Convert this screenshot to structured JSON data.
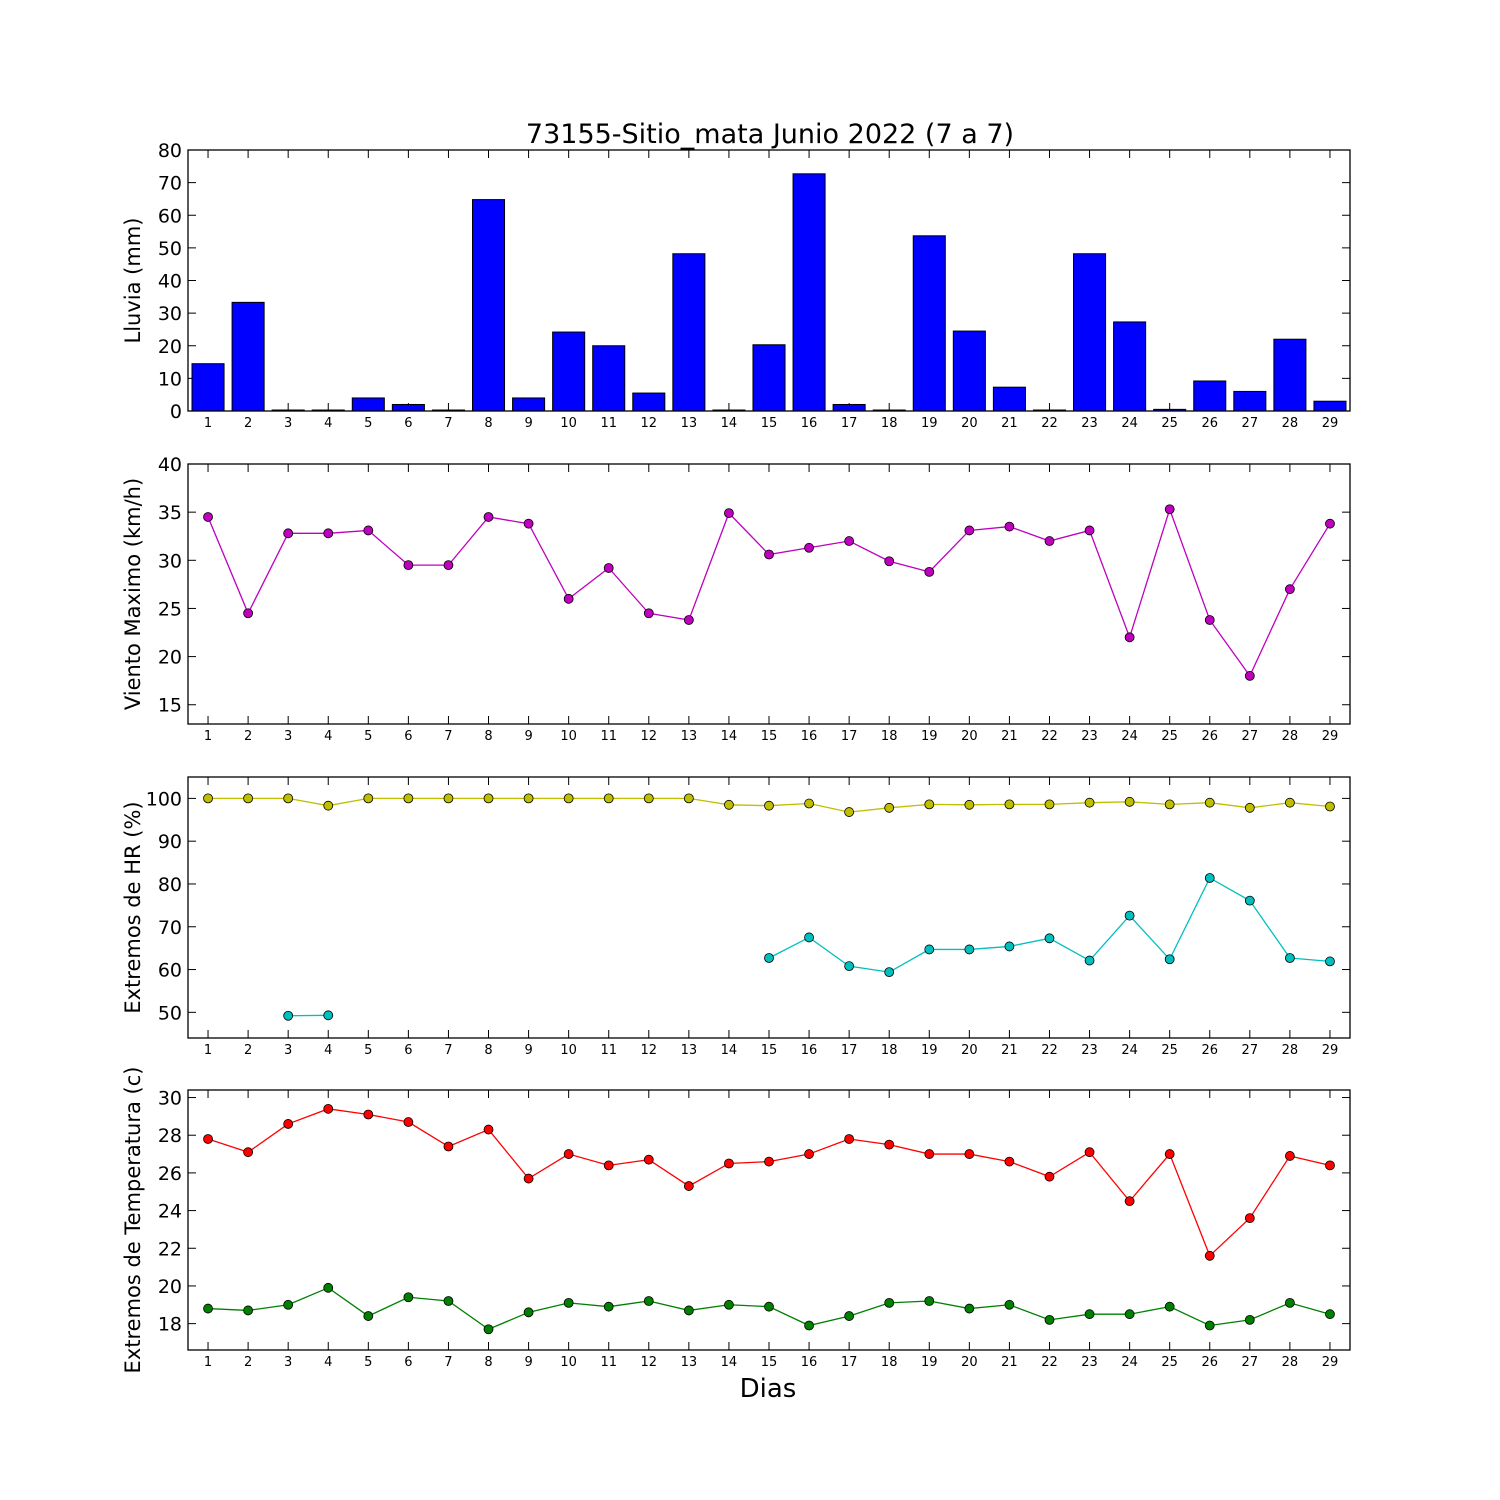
{
  "title": "73155-Sitio_mata Junio 2022  (7 a 7)",
  "xlabel": "Dias",
  "chart_data": [
    {
      "type": "bar",
      "ylabel": "Lluvia (mm)",
      "ylim": [
        0,
        80
      ],
      "yticks": [
        0,
        10,
        20,
        30,
        40,
        50,
        60,
        70,
        80
      ],
      "x": [
        1,
        2,
        3,
        4,
        5,
        6,
        7,
        8,
        9,
        10,
        11,
        12,
        13,
        14,
        15,
        16,
        17,
        18,
        19,
        20,
        21,
        22,
        23,
        24,
        25,
        26,
        27,
        28,
        29
      ],
      "series": [
        {
          "color": "#0000ff",
          "values": [
            14.5,
            33.3,
            0.3,
            0.3,
            4.0,
            2.0,
            0.3,
            64.8,
            4.0,
            24.2,
            20.0,
            5.5,
            48.2,
            0.3,
            20.3,
            72.7,
            2.0,
            0.3,
            53.7,
            24.5,
            7.3,
            0.3,
            48.2,
            27.3,
            0.5,
            9.2,
            6.0,
            22.0,
            3.0
          ]
        }
      ]
    },
    {
      "type": "line",
      "ylabel": "Viento Maximo (km/h)",
      "ylim": [
        13,
        40
      ],
      "yticks": [
        15,
        20,
        25,
        30,
        35,
        40
      ],
      "x": [
        1,
        2,
        3,
        4,
        5,
        6,
        7,
        8,
        9,
        10,
        11,
        12,
        13,
        14,
        15,
        16,
        17,
        18,
        19,
        20,
        21,
        22,
        23,
        24,
        25,
        26,
        27,
        28,
        29
      ],
      "series": [
        {
          "color": "#bf00bf",
          "values": [
            34.5,
            24.5,
            32.8,
            32.8,
            33.1,
            29.5,
            29.5,
            34.5,
            33.8,
            26.0,
            29.2,
            24.5,
            23.8,
            34.9,
            30.6,
            31.3,
            32.0,
            29.9,
            28.8,
            33.1,
            33.5,
            32.0,
            33.1,
            22.0,
            35.3,
            23.8,
            18.0,
            27.0,
            33.8
          ]
        }
      ]
    },
    {
      "type": "line",
      "ylabel": "Extremos de HR (%)",
      "ylim": [
        44,
        105
      ],
      "yticks": [
        50,
        60,
        70,
        80,
        90,
        100
      ],
      "x": [
        1,
        2,
        3,
        4,
        5,
        6,
        7,
        8,
        9,
        10,
        11,
        12,
        13,
        14,
        15,
        16,
        17,
        18,
        19,
        20,
        21,
        22,
        23,
        24,
        25,
        26,
        27,
        28,
        29
      ],
      "series": [
        {
          "color": "#bfbf00",
          "values": [
            100,
            100,
            100,
            98.3,
            100,
            100,
            100,
            100,
            100,
            100,
            100,
            100,
            100,
            98.5,
            98.3,
            98.8,
            96.8,
            97.8,
            98.6,
            98.5,
            98.6,
            98.6,
            99.0,
            99.2,
            98.6,
            99.0,
            97.8,
            99.0,
            98.1
          ]
        },
        {
          "color": "#00bfbf",
          "values": [
            null,
            null,
            49.2,
            49.3,
            null,
            null,
            null,
            null,
            null,
            null,
            null,
            null,
            null,
            null,
            62.7,
            67.5,
            60.8,
            59.4,
            64.7,
            64.7,
            65.4,
            67.3,
            62.1,
            72.6,
            62.4,
            81.4,
            76.1,
            62.7,
            61.9
          ]
        }
      ]
    },
    {
      "type": "line",
      "ylabel": "Extremos de Temperatura (c)",
      "ylim": [
        16.6,
        30.4
      ],
      "yticks": [
        18,
        20,
        22,
        24,
        26,
        28,
        30
      ],
      "x": [
        1,
        2,
        3,
        4,
        5,
        6,
        7,
        8,
        9,
        10,
        11,
        12,
        13,
        14,
        15,
        16,
        17,
        18,
        19,
        20,
        21,
        22,
        23,
        24,
        25,
        26,
        27,
        28,
        29
      ],
      "series": [
        {
          "color": "#ff0000",
          "values": [
            27.8,
            27.1,
            28.6,
            29.4,
            29.1,
            28.7,
            27.4,
            28.3,
            25.7,
            27.0,
            26.4,
            26.7,
            25.3,
            26.5,
            26.6,
            27.0,
            27.8,
            27.5,
            27.0,
            27.0,
            26.6,
            25.8,
            27.1,
            24.5,
            27.0,
            21.6,
            23.6,
            26.9,
            26.4
          ]
        },
        {
          "color": "#008000",
          "values": [
            18.8,
            18.7,
            19.0,
            19.9,
            18.4,
            19.4,
            19.2,
            17.7,
            18.6,
            19.1,
            18.9,
            19.2,
            18.7,
            19.0,
            18.9,
            17.9,
            18.4,
            19.1,
            19.2,
            18.8,
            19.0,
            18.2,
            18.5,
            18.5,
            18.9,
            17.9,
            18.2,
            19.1,
            18.5
          ]
        }
      ]
    }
  ]
}
